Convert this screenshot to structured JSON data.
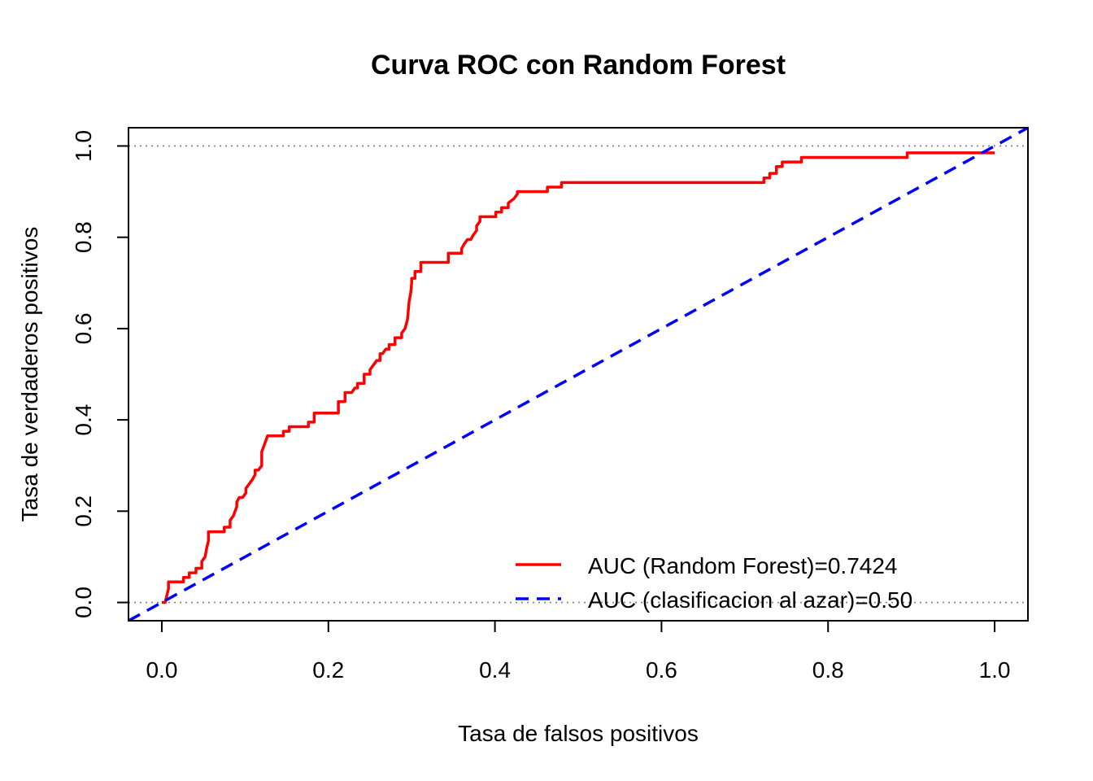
{
  "chart_data": {
    "type": "line",
    "title": "Curva ROC con Random Forest",
    "xlabel": "Tasa de falsos positivos",
    "ylabel": "Tasa de verdaderos positivos",
    "xlim": [
      -0.04,
      1.04
    ],
    "ylim": [
      -0.04,
      1.04
    ],
    "x_ticks": [
      "0.0",
      "0.2",
      "0.4",
      "0.6",
      "0.8",
      "1.0"
    ],
    "y_ticks": [
      "0.0",
      "0.2",
      "0.4",
      "0.6",
      "0.8",
      "1.0"
    ],
    "grid": false,
    "reference_lines_y": [
      0,
      1
    ],
    "legend_position": "bottom-right",
    "series": [
      {
        "name": "AUC (Random Forest)=0.7424",
        "color": "#ff0000",
        "style": "solid",
        "x": [
          0.0,
          0.004,
          0.008,
          0.008,
          0.026,
          0.026,
          0.033,
          0.033,
          0.041,
          0.041,
          0.048,
          0.048,
          0.052,
          0.054,
          0.056,
          0.056,
          0.075,
          0.075,
          0.082,
          0.082,
          0.086,
          0.088,
          0.09,
          0.09,
          0.093,
          0.097,
          0.101,
          0.101,
          0.105,
          0.109,
          0.112,
          0.112,
          0.116,
          0.12,
          0.12,
          0.124,
          0.127,
          0.127,
          0.146,
          0.146,
          0.153,
          0.153,
          0.176,
          0.176,
          0.183,
          0.183,
          0.212,
          0.212,
          0.22,
          0.22,
          0.228,
          0.232,
          0.235,
          0.235,
          0.243,
          0.243,
          0.25,
          0.25,
          0.254,
          0.258,
          0.262,
          0.262,
          0.265,
          0.269,
          0.273,
          0.273,
          0.28,
          0.28,
          0.288,
          0.288,
          0.292,
          0.295,
          0.297,
          0.299,
          0.3,
          0.3,
          0.304,
          0.304,
          0.311,
          0.311,
          0.344,
          0.344,
          0.36,
          0.36,
          0.363,
          0.367,
          0.371,
          0.374,
          0.378,
          0.378,
          0.382,
          0.382,
          0.401,
          0.401,
          0.408,
          0.408,
          0.416,
          0.416,
          0.423,
          0.427,
          0.427,
          0.463,
          0.463,
          0.48,
          0.48,
          0.723,
          0.723,
          0.73,
          0.73,
          0.738,
          0.738,
          0.745,
          0.745,
          0.768,
          0.768,
          0.895,
          0.895,
          1.0
        ],
        "y": [
          0.0,
          0.0,
          0.03,
          0.045,
          0.045,
          0.055,
          0.055,
          0.065,
          0.065,
          0.075,
          0.075,
          0.09,
          0.1,
          0.12,
          0.135,
          0.155,
          0.155,
          0.165,
          0.165,
          0.18,
          0.19,
          0.2,
          0.21,
          0.22,
          0.23,
          0.23,
          0.24,
          0.25,
          0.26,
          0.27,
          0.28,
          0.29,
          0.29,
          0.3,
          0.33,
          0.35,
          0.365,
          0.365,
          0.365,
          0.375,
          0.375,
          0.385,
          0.385,
          0.395,
          0.395,
          0.415,
          0.415,
          0.44,
          0.44,
          0.46,
          0.46,
          0.47,
          0.47,
          0.48,
          0.48,
          0.5,
          0.5,
          0.51,
          0.52,
          0.53,
          0.53,
          0.545,
          0.545,
          0.555,
          0.555,
          0.565,
          0.565,
          0.58,
          0.58,
          0.59,
          0.6,
          0.62,
          0.66,
          0.68,
          0.7,
          0.71,
          0.71,
          0.725,
          0.725,
          0.745,
          0.745,
          0.765,
          0.765,
          0.775,
          0.785,
          0.795,
          0.795,
          0.805,
          0.815,
          0.825,
          0.835,
          0.845,
          0.845,
          0.855,
          0.855,
          0.865,
          0.865,
          0.875,
          0.885,
          0.895,
          0.9,
          0.9,
          0.91,
          0.91,
          0.92,
          0.92,
          0.93,
          0.93,
          0.94,
          0.94,
          0.955,
          0.955,
          0.965,
          0.965,
          0.975,
          0.975,
          0.985,
          0.985
        ]
      },
      {
        "name": "AUC (clasificacion al azar)=0.50",
        "color": "#0000ff",
        "style": "dashed",
        "x": [
          -0.04,
          1.04
        ],
        "y": [
          -0.04,
          1.04
        ]
      }
    ]
  }
}
